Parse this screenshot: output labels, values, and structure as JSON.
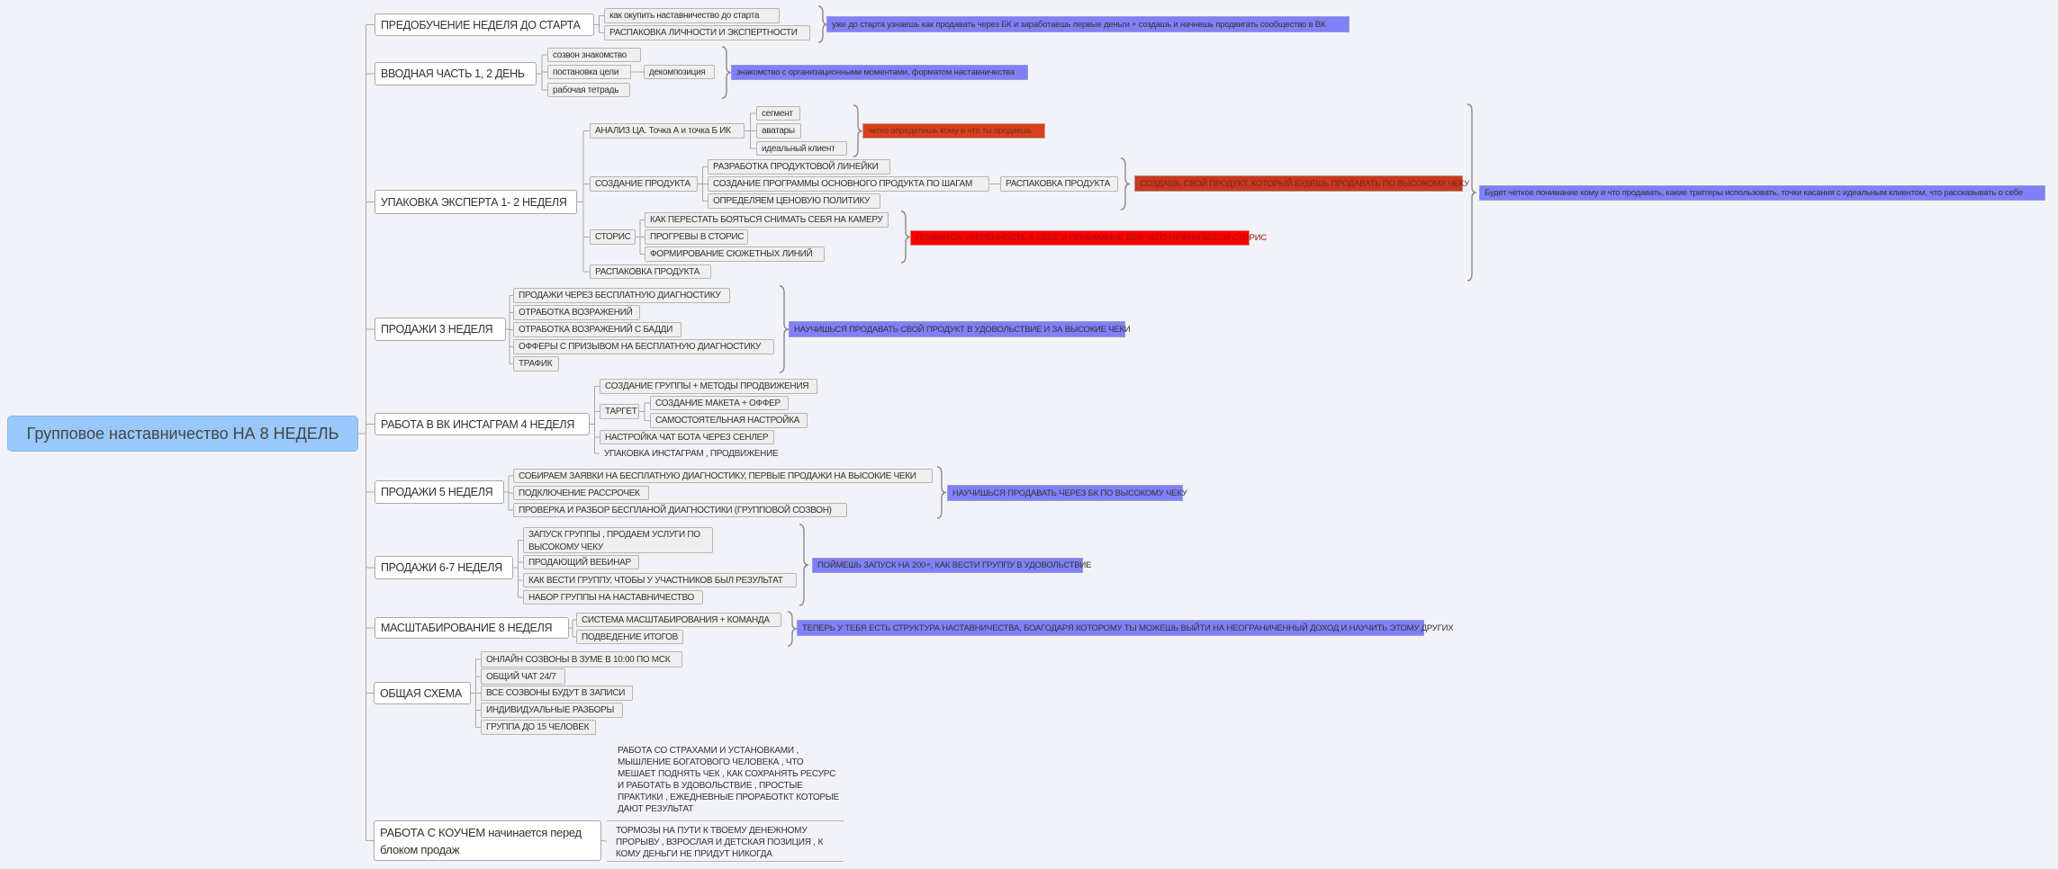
{
  "root": "Групповое наставничество НА 8 НЕДЕЛЬ",
  "branches": [
    {
      "label": "ПРЕДОБУЧЕНИЕ НЕДЕЛЯ ДО СТАРТА",
      "items": [
        "как окупить наставничество до старта",
        "РАСПАКОВКА ЛИЧНОСТИ И ЭКСПЕРТНОСТИ"
      ],
      "note": "уже до старта узнаешь как продавать через БК и заработаешь первые деньги + создашь и начнешь продвигать сообщество в ВК"
    },
    {
      "label": "ВВОДНАЯ ЧАСТЬ 1, 2 ДЕНЬ",
      "items": [
        "созвон знакомство",
        "постановка цели",
        "рабочая тетрадь"
      ],
      "sub_item": "декомпозиция",
      "note": "знакомство с организационными моментами, форматом наставничества"
    },
    {
      "label": "УПАКОВКА ЭКСПЕРТА 1- 2 НЕДЕЛЯ",
      "groups": [
        {
          "label": "АНАЛИЗ ЦА. Точка А и точка Б ИК",
          "items": [
            "сегмент",
            "аватары",
            "идеальный клиент"
          ],
          "note": "четко определишь кому и что ты продаешь"
        },
        {
          "label": "СОЗДАНИЕ ПРОДУКТА",
          "items": [
            "РАЗРАБОТКА ПРОДУКТОВОЙ ЛИНЕЙКИ",
            "СОЗДАНИЕ ПРОГРАММЫ ОСНОВНОГО ПРОДУКТА ПО ШАГАМ",
            "ОПРЕДЕЛЯЕМ ЦЕНОВУЮ ПОЛИТИКУ"
          ],
          "sub_item": "РАСПАКОВКА ПРОДУКТА",
          "note": "СОЗДАШЬ СВОЙ ПРОДУКТ, КОТОРЫЙ БУДЕШЬ ПРОДАВАТЬ ПО ВЫСОКОМУ ЧЕКУ"
        },
        {
          "label": "СТОРИС",
          "items": [
            "КАК ПЕРЕСТАТЬ БОЯТЬСЯ СНИМАТЬ СЕБЯ НА КАМЕРУ",
            "ПРОГРЕВЫ В СТОРИС",
            "ФОРМИРОВАНИЕ СЮЖЕТНЫХ ЛИНИЙ"
          ],
          "note": "ПОЯВИТСЯ УВЕРЕННОСТЬ В СЕБЕ И ПОНИМАНИЕ ДЛЯ ЧЕГО НУЖНО ВЕСТИ СТОРИС"
        },
        {
          "label": "РАСПАКОВКА ПРОДУКТА"
        }
      ],
      "note": "Будет четкое понимание кому и что продавать, какие триггеры использовать, точки касания с идеальным клиентом, что рассказывать о себе"
    },
    {
      "label": "ПРОДАЖИ 3 НЕДЕЛЯ",
      "items": [
        "ПРОДАЖИ ЧЕРЕЗ БЕСПЛАТНУЮ ДИАГНОСТИКУ",
        "ОТРАБОТКА ВОЗРАЖЕНИЙ",
        "ОТРАБОТКА ВОЗРАЖЕНИЙ С БАДДИ",
        "ОФФЕРЫ С ПРИЗЫВОМ НА БЕСПЛАТНУЮ ДИАГНОСТИКУ",
        "ТРАФИК"
      ],
      "note": "НАУЧИШЬСЯ ПРОДАВАТЬ СВОЙ ПРОДУКТ В УДОВОЛЬСТВИЕ И ЗА ВЫСОКИЕ ЧЕКИ"
    },
    {
      "label": "РАБОТА В ВК ИНСТАГРАМ 4 НЕДЕЛЯ",
      "items": [
        "СОЗДАНИЕ ГРУППЫ + МЕТОДЫ ПРОДВИЖЕНИЯ",
        "ТАРГЕТ",
        "НАСТРОЙКА ЧАТ БОТА ЧЕРЕЗ СЕНЛЕР",
        "УПАКОВКА ИНСТАГРАМ , ПРОДВИЖЕНИЕ"
      ],
      "target_items": [
        "СОЗДАНИЕ МАКЕТА + ОФФЕР",
        "САМОСТОЯТЕЛЬНАЯ НАСТРОЙКА"
      ]
    },
    {
      "label": "ПРОДАЖИ 5 НЕДЕЛЯ",
      "items": [
        "СОБИРАЕМ ЗАЯВКИ НА БЕСПЛАТНУЮ ДИАГНОСТИКУ, ПЕРВЫЕ ПРОДАЖИ НА ВЫСОКИЕ ЧЕКИ",
        "ПОДКЛЮЧЕНИЕ РАССРОЧЕК",
        "ПРОВЕРКА И РАЗБОР БЕСПЛАНОЙ ДИАГНОСТИКИ (ГРУППОВОЙ СОЗВОН)"
      ],
      "note": "НАУЧИШЬСЯ ПРОДАВАТЬ ЧЕРЕЗ БК ПО ВЫСОКОМУ ЧЕКУ"
    },
    {
      "label": "ПРОДАЖИ 6-7 НЕДЕЛЯ",
      "items": [
        "ЗАПУСК ГРУППЫ , ПРОДАЕМ УСЛУГИ ПО ВЫСОКОМУ ЧЕКУ",
        "ПРОДАЮЩИЙ ВЕБИНАР",
        "КАК ВЕСТИ ГРУППУ, ЧТОБЫ У УЧАСТНИКОВ БЫЛ РЕЗУЛЬТАТ",
        "НАБОР ГРУППЫ НА НАСТАВНИЧЕСТВО"
      ],
      "note": "ПОЙМЕШЬ ЗАПУСК НА 200+, КАК ВЕСТИ ГРУППУ В УДОВОЛЬСТВИЕ"
    },
    {
      "label": "МАСШТАБИРОВАНИЕ 8 НЕДЕЛЯ",
      "items": [
        "СИСТЕМА МАСШТАБИРОВАНИЯ + КОМАНДА",
        "ПОДВЕДЕНИЕ ИТОГОВ"
      ],
      "note": "ТЕПЕРЬ У ТЕБЯ ЕСТЬ СТРУКТУРА НАСТАВНИЧЕСТВА, БОАГОДАРЯ КОТОРОМУ ТЫ МОЖЕШЬ ВЫЙТИ НА НЕОГРАНИЧЕННЫЙ ДОХОД И НАУЧИТЬ ЭТОМУ ДРУГИХ"
    },
    {
      "label": "ОБЩАЯ СХЕМА",
      "items": [
        "ОНЛАЙН СОЗВОНЫ В ЗУМЕ В 10:00 ПО МСК",
        "ОБЩИЙ ЧАТ 24/7",
        "ВСЕ СОЗВОНЫ БУДУТ В ЗАПИСИ",
        "ИНДИВИДУАЛЬНЫЕ РАЗБОРЫ",
        "ГРУППА ДО 15 ЧЕЛОВЕК"
      ]
    },
    {
      "label": "РАБОТА С КОУЧЕМ начинается перед блоком продаж",
      "items": [
        "РАБОТА СО СТРАХАМИ И УСТАНОВКАМИ , МЫШЛЕНИЕ БОГАТОВОГО ЧЕЛОВЕКА , ЧТО МЕШАЕТ ПОДНЯТЬ ЧЕК , КАК СОХРАНЯТЬ РЕСУРС И РАБОТАТЬ В УДОВОЛЬСТВИЕ , ПРОСТЫЕ ПРАКТИКИ , ЕЖЕДНЕВНЫЕ ПРОРАБОТКТ КОТОРЫЕ ДАЮТ РЕЗУЛЬТАТ",
        "ТОРМОЗЫ НА ПУТИ К ТВОЕМУ ДЕНЕЖНОМУ ПРОРЫВУ , ВЗРОСЛАЯ И ДЕТСКАЯ  ПОЗИЦИЯ , К КОМУ ДЕНЬГИ НЕ ПРИДУТ НИКОГДА"
      ]
    }
  ],
  "colors": {
    "background": "#f2f3f8",
    "root": "#99c9fb",
    "note_purple": "#8080f8",
    "note_orange_red": "#d9411e",
    "note_dark_red": "#c8391f",
    "note_red": "#ff0000"
  }
}
